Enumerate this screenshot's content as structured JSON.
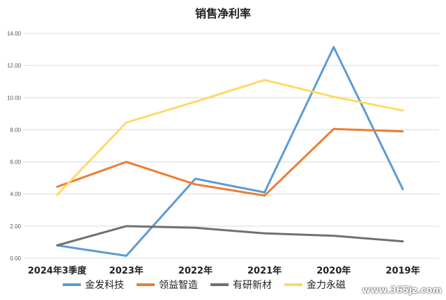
{
  "chart_data": {
    "type": "line",
    "title": "销售净利率",
    "categories": [
      "2024年3季度",
      "2023年",
      "2022年",
      "2021年",
      "2020年",
      "2019年"
    ],
    "yticks": [
      "0.00",
      "2.00",
      "4.00",
      "6.00",
      "8.00",
      "10.00",
      "12.00",
      "14.00"
    ],
    "ylim": [
      0,
      14
    ],
    "grid": true,
    "legend_position": "bottom",
    "series": [
      {
        "name": "金发科技",
        "color": "#5b9bd5",
        "values": [
          0.8,
          0.15,
          4.95,
          4.1,
          13.15,
          4.3
        ]
      },
      {
        "name": "领益智造",
        "color": "#ed7d31",
        "values": [
          4.45,
          6.0,
          4.6,
          3.9,
          8.05,
          7.9
        ]
      },
      {
        "name": "有研新材",
        "color": "#707070",
        "values": [
          0.8,
          2.0,
          1.9,
          1.55,
          1.4,
          1.05
        ]
      },
      {
        "name": "金力永磁",
        "color": "#ffd966",
        "values": [
          3.95,
          8.45,
          9.75,
          11.1,
          10.05,
          9.2
        ]
      }
    ]
  },
  "watermark": "www.365jz.com"
}
